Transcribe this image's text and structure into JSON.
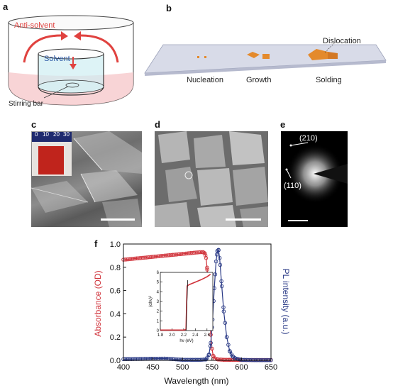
{
  "panels": {
    "a": {
      "label": "a",
      "anti_solvent": "Anti-solvent",
      "solvent": "Solvent",
      "stirring_bar": "Stirring bar"
    },
    "b": {
      "label": "b",
      "stages": [
        "Nucleation",
        "Growth",
        "Solding"
      ],
      "dislocation": "Dislocation"
    },
    "c": {
      "label": "c",
      "ruler_ticks": [
        "0",
        "10",
        "20",
        "30"
      ]
    },
    "d": {
      "label": "d"
    },
    "e": {
      "label": "e",
      "spot_labels": [
        "(210)",
        "(110)"
      ]
    },
    "f": {
      "label": "f"
    }
  },
  "colors": {
    "absorbance": "#d0323a",
    "pl": "#2a3a86",
    "anti_solvent": "#e0423f",
    "solvent": "#2d5aa6"
  },
  "chart_data": [
    {
      "type": "line",
      "xlabel": "Wavelength (nm)",
      "ylabel_left": "Absorbance (OD)",
      "ylabel_right": "PL intensity (a.u.)",
      "xlim": [
        400,
        650
      ],
      "ylim": [
        0,
        1.0
      ],
      "xticks": [
        "400",
        "450",
        "500",
        "550",
        "600",
        "650"
      ],
      "yticks": [
        "0.0",
        "0.2",
        "0.4",
        "0.6",
        "0.8",
        "1.0"
      ],
      "series": [
        {
          "axis": "left",
          "x": [
            400,
            420,
            440,
            460,
            480,
            500,
            520,
            530,
            535,
            538,
            540,
            542,
            544,
            546,
            548,
            550,
            552,
            555,
            560,
            570,
            580,
            600,
            620,
            650
          ],
          "y": [
            0.865,
            0.875,
            0.885,
            0.895,
            0.905,
            0.915,
            0.925,
            0.93,
            0.93,
            0.92,
            0.88,
            0.78,
            0.6,
            0.4,
            0.22,
            0.1,
            0.04,
            0.015,
            0.008,
            0.005,
            0.004,
            0.003,
            0.003,
            0.003
          ]
        },
        {
          "axis": "right",
          "x": [
            400,
            470,
            500,
            530,
            540,
            545,
            548,
            551,
            554,
            557,
            559,
            561,
            563,
            566,
            570,
            575,
            580,
            585,
            590,
            600,
            620,
            650
          ],
          "y": [
            0.01,
            0.015,
            0.005,
            0.004,
            0.008,
            0.05,
            0.15,
            0.35,
            0.62,
            0.85,
            0.94,
            0.95,
            0.88,
            0.68,
            0.42,
            0.2,
            0.08,
            0.035,
            0.015,
            0.004,
            0.002,
            0.002
          ]
        }
      ]
    },
    {
      "type": "line",
      "inset": true,
      "xlabel": "hν (eV)",
      "ylabel": "(αhν)²",
      "xlim": [
        1.8,
        2.7
      ],
      "ylim": [
        0,
        6
      ],
      "xticks": [
        "1.8",
        "2.0",
        "2.2",
        "2.4",
        "2.6"
      ],
      "yticks": [
        "0",
        "1",
        "2",
        "3",
        "4",
        "5",
        "6"
      ],
      "x": [
        1.8,
        2.0,
        2.2,
        2.24,
        2.25,
        2.26,
        2.3,
        2.4,
        2.5,
        2.6,
        2.66
      ],
      "y": [
        0.05,
        0.05,
        0.05,
        0.1,
        2.5,
        4.6,
        4.75,
        5.0,
        5.25,
        5.55,
        5.8
      ]
    }
  ]
}
